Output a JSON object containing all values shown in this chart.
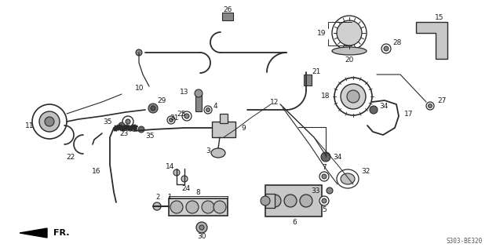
{
  "background_color": "#ffffff",
  "diagram_code": "S303-BE320",
  "fr_label": "FR.",
  "fig_width": 6.23,
  "fig_height": 3.2,
  "dpi": 100,
  "line_color": "#2a2a2a",
  "text_color": "#1a1a1a"
}
